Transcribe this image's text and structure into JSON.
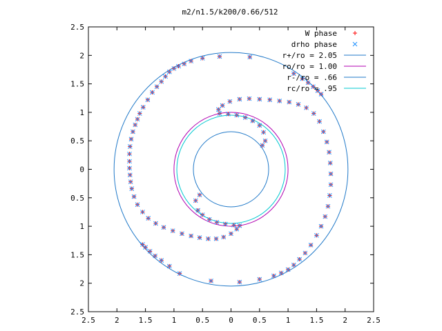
{
  "chart_data": {
    "type": "scatter",
    "title": "m2/n1.5/k200/0.66/512",
    "xlabel": "",
    "ylabel": "",
    "xlim": [
      -2.5,
      2.5
    ],
    "ylim": [
      -2.5,
      2.5
    ],
    "xticks": [
      -2.5,
      -2,
      -1.5,
      -1,
      -0.5,
      0,
      0.5,
      1,
      1.5,
      2,
      2.5
    ],
    "yticks": [
      -2.5,
      -2,
      -1.5,
      -1,
      -0.5,
      0,
      0.5,
      1,
      1.5,
      2,
      2.5
    ],
    "xtick_labels": [
      "2.5",
      "2",
      "1.5",
      "1",
      "0.5",
      "0",
      "0.5",
      "1",
      "1.5",
      "2",
      "2.5"
    ],
    "ytick_labels": [
      "2.5",
      "2",
      "1.5",
      "1",
      "0.5",
      "0",
      "0.5",
      "1",
      "1.5",
      "2",
      "2.5"
    ],
    "grid": false,
    "legend_position": "top-right",
    "series": [
      {
        "name": "W phase",
        "marker": "plus",
        "color": "#ff0000",
        "points": [
          [
            0.33,
            1.97
          ],
          [
            -0.2,
            1.98
          ],
          [
            -0.5,
            1.95
          ],
          [
            -0.7,
            1.9
          ],
          [
            -0.82,
            1.85
          ],
          [
            -0.92,
            1.81
          ],
          [
            -1.0,
            1.77
          ],
          [
            -1.08,
            1.71
          ],
          [
            -1.15,
            1.63
          ],
          [
            -1.22,
            1.54
          ],
          [
            -1.3,
            1.45
          ],
          [
            -1.38,
            1.35
          ],
          [
            -1.46,
            1.22
          ],
          [
            -1.54,
            1.09
          ],
          [
            -1.6,
            0.98
          ],
          [
            -1.64,
            0.88
          ],
          [
            -1.68,
            0.78
          ],
          [
            -1.72,
            0.66
          ],
          [
            -1.75,
            0.53
          ],
          [
            -1.77,
            0.4
          ],
          [
            -1.78,
            0.27
          ],
          [
            -1.78,
            0.14
          ],
          [
            -1.78,
            0.02
          ],
          [
            -1.77,
            -0.1
          ],
          [
            -1.76,
            -0.22
          ],
          [
            -1.74,
            -0.34
          ],
          [
            -1.7,
            -0.48
          ],
          [
            -1.64,
            -0.62
          ],
          [
            -1.55,
            -0.75
          ],
          [
            -1.45,
            -0.86
          ],
          [
            -1.32,
            -0.95
          ],
          [
            -1.18,
            -1.02
          ],
          [
            -1.02,
            -1.08
          ],
          [
            -0.86,
            -1.13
          ],
          [
            -0.7,
            -1.17
          ],
          [
            -0.55,
            -1.2
          ],
          [
            -0.4,
            -1.22
          ],
          [
            -0.26,
            -1.22
          ],
          [
            -0.13,
            -1.19
          ],
          [
            0.0,
            -1.13
          ],
          [
            0.1,
            -1.05
          ],
          [
            0.15,
            -0.99
          ],
          [
            0.05,
            -0.98
          ],
          [
            -0.1,
            -0.96
          ],
          [
            -0.25,
            -0.93
          ],
          [
            -0.38,
            -0.88
          ],
          [
            -0.5,
            -0.8
          ],
          [
            -0.58,
            -0.72
          ],
          [
            -0.62,
            -0.55
          ],
          [
            -0.55,
            -0.45
          ],
          [
            -1.55,
            -1.32
          ],
          [
            -1.5,
            -1.37
          ],
          [
            -1.42,
            -1.44
          ],
          [
            -1.33,
            -1.52
          ],
          [
            -1.22,
            -1.6
          ],
          [
            -1.08,
            -1.7
          ],
          [
            -0.9,
            -1.83
          ],
          [
            -0.35,
            -1.96
          ],
          [
            0.15,
            -1.98
          ],
          [
            0.5,
            -1.93
          ],
          [
            0.75,
            -1.87
          ],
          [
            0.88,
            -1.82
          ],
          [
            1.0,
            -1.76
          ],
          [
            1.1,
            -1.68
          ],
          [
            1.2,
            -1.58
          ],
          [
            1.3,
            -1.47
          ],
          [
            1.4,
            -1.33
          ],
          [
            1.5,
            -1.16
          ],
          [
            1.58,
            -1.0
          ],
          [
            1.65,
            -0.83
          ],
          [
            1.7,
            -0.65
          ],
          [
            1.73,
            -0.46
          ],
          [
            1.75,
            -0.27
          ],
          [
            1.75,
            -0.08
          ],
          [
            1.74,
            0.11
          ],
          [
            1.72,
            0.3
          ],
          [
            1.68,
            0.48
          ],
          [
            1.62,
            0.66
          ],
          [
            1.55,
            0.84
          ],
          [
            1.45,
            0.98
          ],
          [
            1.32,
            1.08
          ],
          [
            1.18,
            1.14
          ],
          [
            1.02,
            1.18
          ],
          [
            0.85,
            1.2
          ],
          [
            0.68,
            1.22
          ],
          [
            0.5,
            1.23
          ],
          [
            0.32,
            1.24
          ],
          [
            0.15,
            1.23
          ],
          [
            -0.02,
            1.19
          ],
          [
            -0.15,
            1.12
          ],
          [
            -0.22,
            1.05
          ],
          [
            -0.2,
            0.98
          ],
          [
            -0.05,
            0.97
          ],
          [
            0.1,
            0.95
          ],
          [
            0.25,
            0.91
          ],
          [
            0.38,
            0.85
          ],
          [
            0.5,
            0.77
          ],
          [
            0.57,
            0.65
          ],
          [
            0.6,
            0.5
          ],
          [
            0.55,
            0.42
          ],
          [
            1.58,
            1.32
          ],
          [
            1.52,
            1.38
          ],
          [
            1.44,
            1.45
          ],
          [
            1.35,
            1.52
          ],
          [
            1.25,
            1.59
          ],
          [
            1.1,
            1.68
          ]
        ]
      },
      {
        "name": "drho phase",
        "marker": "cross",
        "color": "#1e90ff",
        "points": [
          [
            0.33,
            1.97
          ],
          [
            -0.2,
            1.98
          ],
          [
            -0.5,
            1.95
          ],
          [
            -0.7,
            1.9
          ],
          [
            -0.82,
            1.85
          ],
          [
            -0.92,
            1.81
          ],
          [
            -1.0,
            1.77
          ],
          [
            -1.08,
            1.71
          ],
          [
            -1.15,
            1.63
          ],
          [
            -1.22,
            1.54
          ],
          [
            -1.3,
            1.45
          ],
          [
            -1.38,
            1.35
          ],
          [
            -1.46,
            1.22
          ],
          [
            -1.54,
            1.09
          ],
          [
            -1.6,
            0.98
          ],
          [
            -1.64,
            0.88
          ],
          [
            -1.68,
            0.78
          ],
          [
            -1.72,
            0.66
          ],
          [
            -1.75,
            0.53
          ],
          [
            -1.77,
            0.4
          ],
          [
            -1.78,
            0.27
          ],
          [
            -1.78,
            0.14
          ],
          [
            -1.78,
            0.02
          ],
          [
            -1.77,
            -0.1
          ],
          [
            -1.76,
            -0.22
          ],
          [
            -1.74,
            -0.34
          ],
          [
            -1.7,
            -0.48
          ],
          [
            -1.64,
            -0.62
          ],
          [
            -1.55,
            -0.75
          ],
          [
            -1.45,
            -0.86
          ],
          [
            -1.32,
            -0.95
          ],
          [
            -1.18,
            -1.02
          ],
          [
            -1.02,
            -1.08
          ],
          [
            -0.86,
            -1.13
          ],
          [
            -0.7,
            -1.17
          ],
          [
            -0.55,
            -1.2
          ],
          [
            -0.4,
            -1.22
          ],
          [
            -0.26,
            -1.22
          ],
          [
            -0.13,
            -1.19
          ],
          [
            0.0,
            -1.13
          ],
          [
            0.1,
            -1.05
          ],
          [
            0.15,
            -0.99
          ],
          [
            0.05,
            -0.98
          ],
          [
            -0.1,
            -0.96
          ],
          [
            -0.25,
            -0.93
          ],
          [
            -0.38,
            -0.88
          ],
          [
            -0.5,
            -0.8
          ],
          [
            -0.58,
            -0.72
          ],
          [
            -0.62,
            -0.55
          ],
          [
            -0.55,
            -0.45
          ],
          [
            -1.55,
            -1.32
          ],
          [
            -1.5,
            -1.37
          ],
          [
            -1.42,
            -1.44
          ],
          [
            -1.33,
            -1.52
          ],
          [
            -1.22,
            -1.6
          ],
          [
            -1.08,
            -1.7
          ],
          [
            -0.9,
            -1.83
          ],
          [
            -0.35,
            -1.96
          ],
          [
            0.15,
            -1.98
          ],
          [
            0.5,
            -1.93
          ],
          [
            0.75,
            -1.87
          ],
          [
            0.88,
            -1.82
          ],
          [
            1.0,
            -1.76
          ],
          [
            1.1,
            -1.68
          ],
          [
            1.2,
            -1.58
          ],
          [
            1.3,
            -1.47
          ],
          [
            1.4,
            -1.33
          ],
          [
            1.5,
            -1.16
          ],
          [
            1.58,
            -1.0
          ],
          [
            1.65,
            -0.83
          ],
          [
            1.7,
            -0.65
          ],
          [
            1.73,
            -0.46
          ],
          [
            1.75,
            -0.27
          ],
          [
            1.75,
            -0.08
          ],
          [
            1.74,
            0.11
          ],
          [
            1.72,
            0.3
          ],
          [
            1.68,
            0.48
          ],
          [
            1.62,
            0.66
          ],
          [
            1.55,
            0.84
          ],
          [
            1.45,
            0.98
          ],
          [
            1.32,
            1.08
          ],
          [
            1.18,
            1.14
          ],
          [
            1.02,
            1.18
          ],
          [
            0.85,
            1.2
          ],
          [
            0.68,
            1.22
          ],
          [
            0.5,
            1.23
          ],
          [
            0.32,
            1.24
          ],
          [
            0.15,
            1.23
          ],
          [
            -0.02,
            1.19
          ],
          [
            -0.15,
            1.12
          ],
          [
            -0.22,
            1.05
          ],
          [
            -0.2,
            0.98
          ],
          [
            -0.05,
            0.97
          ],
          [
            0.1,
            0.95
          ],
          [
            0.25,
            0.91
          ],
          [
            0.38,
            0.85
          ],
          [
            0.5,
            0.77
          ],
          [
            0.57,
            0.65
          ],
          [
            0.6,
            0.5
          ],
          [
            0.55,
            0.42
          ],
          [
            1.58,
            1.32
          ],
          [
            1.52,
            1.38
          ],
          [
            1.44,
            1.45
          ],
          [
            1.35,
            1.52
          ],
          [
            1.25,
            1.59
          ],
          [
            1.1,
            1.68
          ]
        ]
      }
    ],
    "circles": [
      {
        "name": "r+/ro = 2.05",
        "radius": 2.05,
        "color": "#1f78c8"
      },
      {
        "name": "ro/ro = 1.00",
        "radius": 1.0,
        "color": "#b000b0"
      },
      {
        "name": "r-/ro = .66",
        "radius": 0.66,
        "color": "#1f78c8"
      },
      {
        "name": "rc/ro = .95",
        "radius": 0.95,
        "color": "#00c8d0"
      }
    ]
  }
}
